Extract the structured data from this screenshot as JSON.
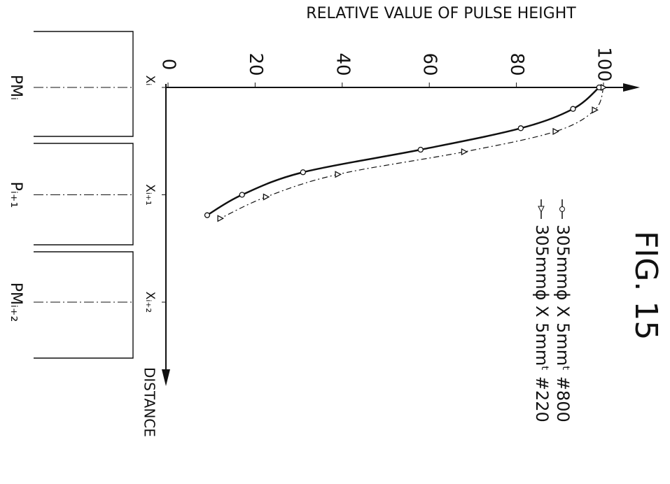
{
  "chart_data": {
    "type": "line",
    "title": "RELATIVE VALUE OF PULSE HEIGHT",
    "figure_label": "FIG. 15",
    "x_label": "DISTANCE",
    "panels": [
      "PMᵢ",
      "Pᵢ₊₁",
      "PMᵢ₊₂"
    ],
    "xlim": [
      0,
      2.55
    ],
    "xticks": [
      {
        "value": 0,
        "label": "Xᵢ"
      },
      {
        "value": 1,
        "label": "Xᵢ₊₁"
      },
      {
        "value": 2,
        "label": "Xᵢ₊₂"
      }
    ],
    "ylim": [
      0,
      100
    ],
    "yticks": [
      0,
      20,
      40,
      60,
      80,
      100
    ],
    "series": [
      {
        "name": "305mmϕ X 5mmᵗ #800",
        "color": "#111",
        "style": "solid",
        "marker": "circle",
        "x": [
          0,
          0.2,
          0.38,
          0.58,
          0.79,
          1.0,
          1.19
        ],
        "values": [
          99,
          93,
          81,
          58,
          31,
          17,
          9
        ]
      },
      {
        "name": "305mmϕ X 5mmᵗ #220",
        "color": "#111",
        "style": "dashed",
        "marker": "triangle",
        "x": [
          0,
          0.21,
          0.41,
          0.6,
          0.81,
          1.02,
          1.22
        ],
        "values": [
          100,
          98,
          89,
          68,
          39,
          22.5,
          12
        ]
      }
    ]
  }
}
